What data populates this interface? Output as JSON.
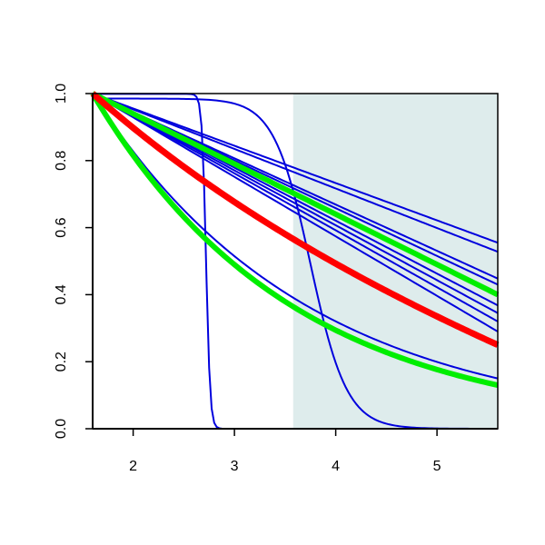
{
  "chart_data": {
    "type": "line",
    "title": "",
    "xlabel": "",
    "ylabel": "",
    "xlim": [
      1.6,
      5.6
    ],
    "ylim": [
      0.0,
      1.0
    ],
    "x_ticks": [
      "2",
      "3",
      "4",
      "5"
    ],
    "y_ticks": [
      "0.0",
      "0.2",
      "0.4",
      "0.6",
      "0.8",
      "1.0"
    ],
    "grid": false,
    "legend": "none",
    "shaded_region": {
      "x_start": 3.58,
      "x_end": 5.6,
      "color": "#deecec"
    },
    "series": [
      {
        "color": "#0000dd",
        "kind": "line",
        "x": [
          1.6,
          5.6
        ],
        "y": [
          1.0,
          0.555
        ]
      },
      {
        "color": "#0000dd",
        "kind": "line",
        "x": [
          1.6,
          5.6
        ],
        "y": [
          1.0,
          0.528
        ]
      },
      {
        "color": "#0000dd",
        "kind": "line",
        "x": [
          1.6,
          5.6
        ],
        "y": [
          1.0,
          0.448
        ]
      },
      {
        "color": "#0000dd",
        "kind": "line",
        "x": [
          1.6,
          5.6
        ],
        "y": [
          1.0,
          0.43
        ]
      },
      {
        "color": "#0000dd",
        "kind": "line",
        "x": [
          1.6,
          5.6
        ],
        "y": [
          1.0,
          0.368
        ]
      },
      {
        "color": "#0000dd",
        "kind": "line",
        "x": [
          1.6,
          5.6
        ],
        "y": [
          1.0,
          0.345
        ]
      },
      {
        "color": "#0000dd",
        "kind": "line",
        "x": [
          1.6,
          5.6
        ],
        "y": [
          1.0,
          0.32
        ]
      },
      {
        "color": "#0000dd",
        "kind": "line",
        "x": [
          1.6,
          5.6
        ],
        "y": [
          1.0,
          0.29
        ]
      },
      {
        "color": "#0000dd",
        "kind": "convex",
        "x": [
          1.6,
          5.6
        ],
        "y": [
          1.0,
          0.15
        ]
      },
      {
        "color": "#0000dd",
        "kind": "logistic",
        "center": 3.75,
        "scale": 0.18,
        "start": 0.985,
        "x": [
          1.6,
          5.6
        ]
      },
      {
        "color": "#0000dd",
        "kind": "logistic",
        "center": 2.72,
        "scale": 0.02,
        "start": 0.999,
        "x": [
          1.6,
          5.6
        ]
      },
      {
        "color": "#00ee00",
        "kind": "line",
        "width": 6,
        "x": [
          1.6,
          5.6
        ],
        "y": [
          1.0,
          0.4
        ]
      },
      {
        "color": "#00ee00",
        "kind": "convex",
        "width": 6,
        "x": [
          1.6,
          5.6
        ],
        "y": [
          1.0,
          0.13
        ]
      },
      {
        "color": "#ff0000",
        "kind": "convex-mild",
        "width": 7,
        "x": [
          1.6,
          5.6
        ],
        "y": [
          1.0,
          0.25
        ]
      }
    ]
  }
}
